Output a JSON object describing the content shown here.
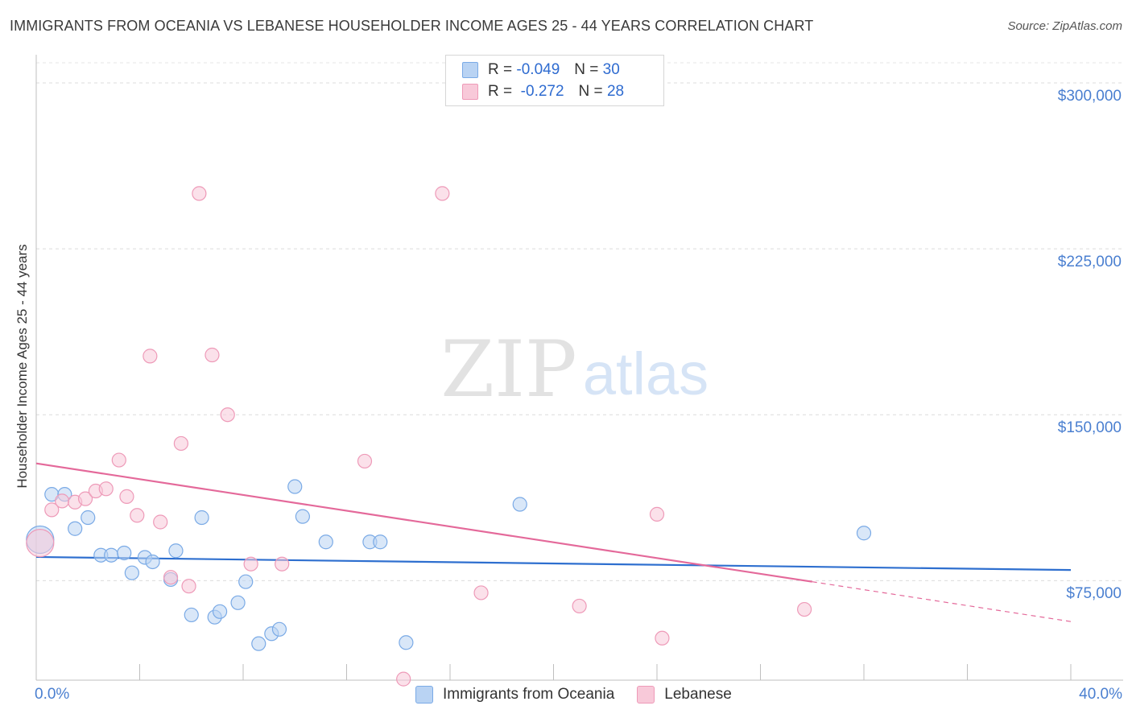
{
  "chart_data": {
    "type": "scatter",
    "title": "IMMIGRANTS FROM OCEANIA VS LEBANESE HOUSEHOLDER INCOME AGES 25 - 44 YEARS CORRELATION CHART",
    "source": "Source: ZipAtlas.com",
    "watermark_zip": "ZIP",
    "watermark_atlas": "atlas",
    "xlabel": "",
    "ylabel": "Householder Income Ages 25 - 44 years",
    "xlim": [
      0,
      40
    ],
    "ylim": [
      30000,
      312000
    ],
    "x_tick_labels": [
      {
        "value": 0,
        "label": "0.0%"
      },
      {
        "value": 40,
        "label": "40.0%"
      }
    ],
    "y_tick_labels": [
      {
        "value": 75000,
        "label": "$75,000"
      },
      {
        "value": 150000,
        "label": "$150,000"
      },
      {
        "value": 225000,
        "label": "$225,000"
      },
      {
        "value": 300000,
        "label": "$300,000"
      }
    ],
    "y_gridlines": [
      75000,
      150000,
      225000,
      300000
    ],
    "legend": {
      "position": "top-center",
      "rows": [
        {
          "series": "Immigrants from Oceania",
          "r_label": "R =",
          "r_value": "-0.049",
          "n_label": "N =",
          "n_value": "30"
        },
        {
          "series": "Lebanese",
          "r_label": "R =",
          "r_value": "-0.272",
          "n_label": "N =",
          "n_value": "28"
        }
      ]
    },
    "series": [
      {
        "name": "Immigrants from Oceania",
        "color": "#7aaae6",
        "fill": "#b9d3f3",
        "trend_color": "#2e6fcf",
        "trend": {
          "x0": 0,
          "y0": 85700,
          "x1": 40,
          "y1": 79800
        },
        "points": [
          {
            "x": 0.15,
            "y": 93500,
            "big": true
          },
          {
            "x": 0.6,
            "y": 114000
          },
          {
            "x": 1.1,
            "y": 114000
          },
          {
            "x": 1.5,
            "y": 98500
          },
          {
            "x": 2.0,
            "y": 103500
          },
          {
            "x": 2.5,
            "y": 86500
          },
          {
            "x": 2.9,
            "y": 86500
          },
          {
            "x": 3.4,
            "y": 87500
          },
          {
            "x": 3.7,
            "y": 78500
          },
          {
            "x": 4.2,
            "y": 85500
          },
          {
            "x": 4.5,
            "y": 83500
          },
          {
            "x": 5.2,
            "y": 75500
          },
          {
            "x": 5.4,
            "y": 88500
          },
          {
            "x": 6.0,
            "y": 59500
          },
          {
            "x": 6.4,
            "y": 103500
          },
          {
            "x": 6.9,
            "y": 58500
          },
          {
            "x": 7.1,
            "y": 61000
          },
          {
            "x": 7.8,
            "y": 65000
          },
          {
            "x": 8.1,
            "y": 74500
          },
          {
            "x": 8.6,
            "y": 46500
          },
          {
            "x": 9.1,
            "y": 51000
          },
          {
            "x": 9.4,
            "y": 53000
          },
          {
            "x": 10.0,
            "y": 117500
          },
          {
            "x": 10.3,
            "y": 104000
          },
          {
            "x": 11.2,
            "y": 92500
          },
          {
            "x": 12.9,
            "y": 92500
          },
          {
            "x": 13.3,
            "y": 92500
          },
          {
            "x": 14.3,
            "y": 47000
          },
          {
            "x": 18.7,
            "y": 109500
          },
          {
            "x": 32.0,
            "y": 96500
          }
        ]
      },
      {
        "name": "Lebanese",
        "color": "#ee9ab8",
        "fill": "#f8c9d9",
        "trend_color": "#e4699a",
        "trend": {
          "x0": 0,
          "y0": 128000,
          "x1": 30.0,
          "y1": 74500
        },
        "trend_dashed": {
          "x0": 30.0,
          "y0": 74500,
          "x1": 40,
          "y1": 56500
        },
        "points": [
          {
            "x": 0.15,
            "y": 92000,
            "big": true
          },
          {
            "x": 0.6,
            "y": 107000
          },
          {
            "x": 1.0,
            "y": 111000
          },
          {
            "x": 1.5,
            "y": 110500
          },
          {
            "x": 1.9,
            "y": 112000
          },
          {
            "x": 2.3,
            "y": 115500
          },
          {
            "x": 2.7,
            "y": 116500
          },
          {
            "x": 3.2,
            "y": 129500
          },
          {
            "x": 3.5,
            "y": 113000
          },
          {
            "x": 3.9,
            "y": 104500
          },
          {
            "x": 4.4,
            "y": 176500
          },
          {
            "x": 4.8,
            "y": 101500
          },
          {
            "x": 5.2,
            "y": 76500
          },
          {
            "x": 5.6,
            "y": 137000
          },
          {
            "x": 5.9,
            "y": 72500
          },
          {
            "x": 6.3,
            "y": 250000
          },
          {
            "x": 6.8,
            "y": 177000
          },
          {
            "x": 7.4,
            "y": 150000
          },
          {
            "x": 8.3,
            "y": 82500
          },
          {
            "x": 9.5,
            "y": 82500
          },
          {
            "x": 12.7,
            "y": 129000
          },
          {
            "x": 14.2,
            "y": 30500
          },
          {
            "x": 15.7,
            "y": 250000
          },
          {
            "x": 17.2,
            "y": 69500
          },
          {
            "x": 21.0,
            "y": 63500
          },
          {
            "x": 24.0,
            "y": 105000
          },
          {
            "x": 24.2,
            "y": 49000
          },
          {
            "x": 29.7,
            "y": 62000
          }
        ]
      }
    ]
  }
}
